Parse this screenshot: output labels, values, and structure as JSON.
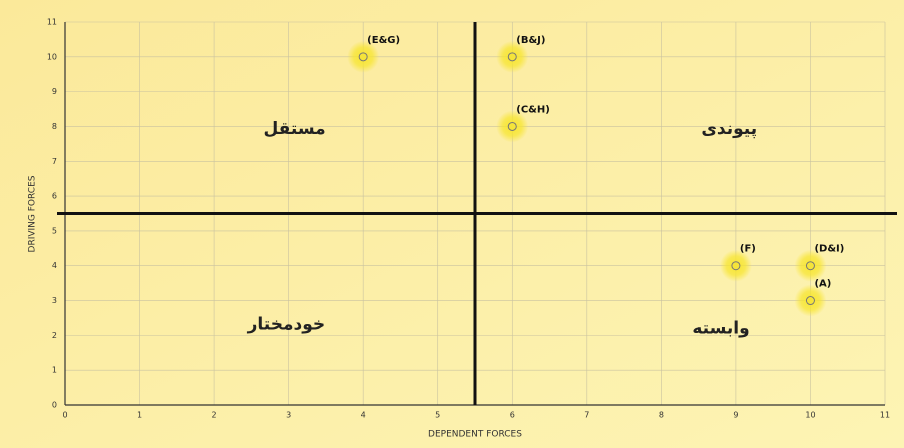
{
  "chart_data": {
    "type": "scatter",
    "x_label": "DEPENDENT FORCES",
    "y_label": "DRIVING FORCES",
    "x": [
      4,
      6,
      6,
      9,
      10,
      10
    ],
    "y": [
      10,
      10,
      8,
      4,
      4,
      3
    ],
    "labels": [
      "(E&G)",
      "(B&J)",
      "(C&H)",
      "(F)",
      "(D&I)",
      "(A)"
    ],
    "quadrant_labels": [
      "مستقل",
      "پیوندی",
      "خودمختار",
      "وابسته"
    ],
    "divider_x": 5.5,
    "divider_y": 5.5,
    "xlim": [
      0,
      11
    ],
    "ylim": [
      0,
      11
    ],
    "xticks": [
      0,
      1,
      2,
      3,
      4,
      5,
      6,
      7,
      8,
      9,
      10,
      11
    ],
    "yticks": [
      0,
      1,
      2,
      3,
      4,
      5,
      6,
      7,
      8,
      9,
      10,
      11
    ],
    "grid": true,
    "color": "#f5e43a"
  }
}
